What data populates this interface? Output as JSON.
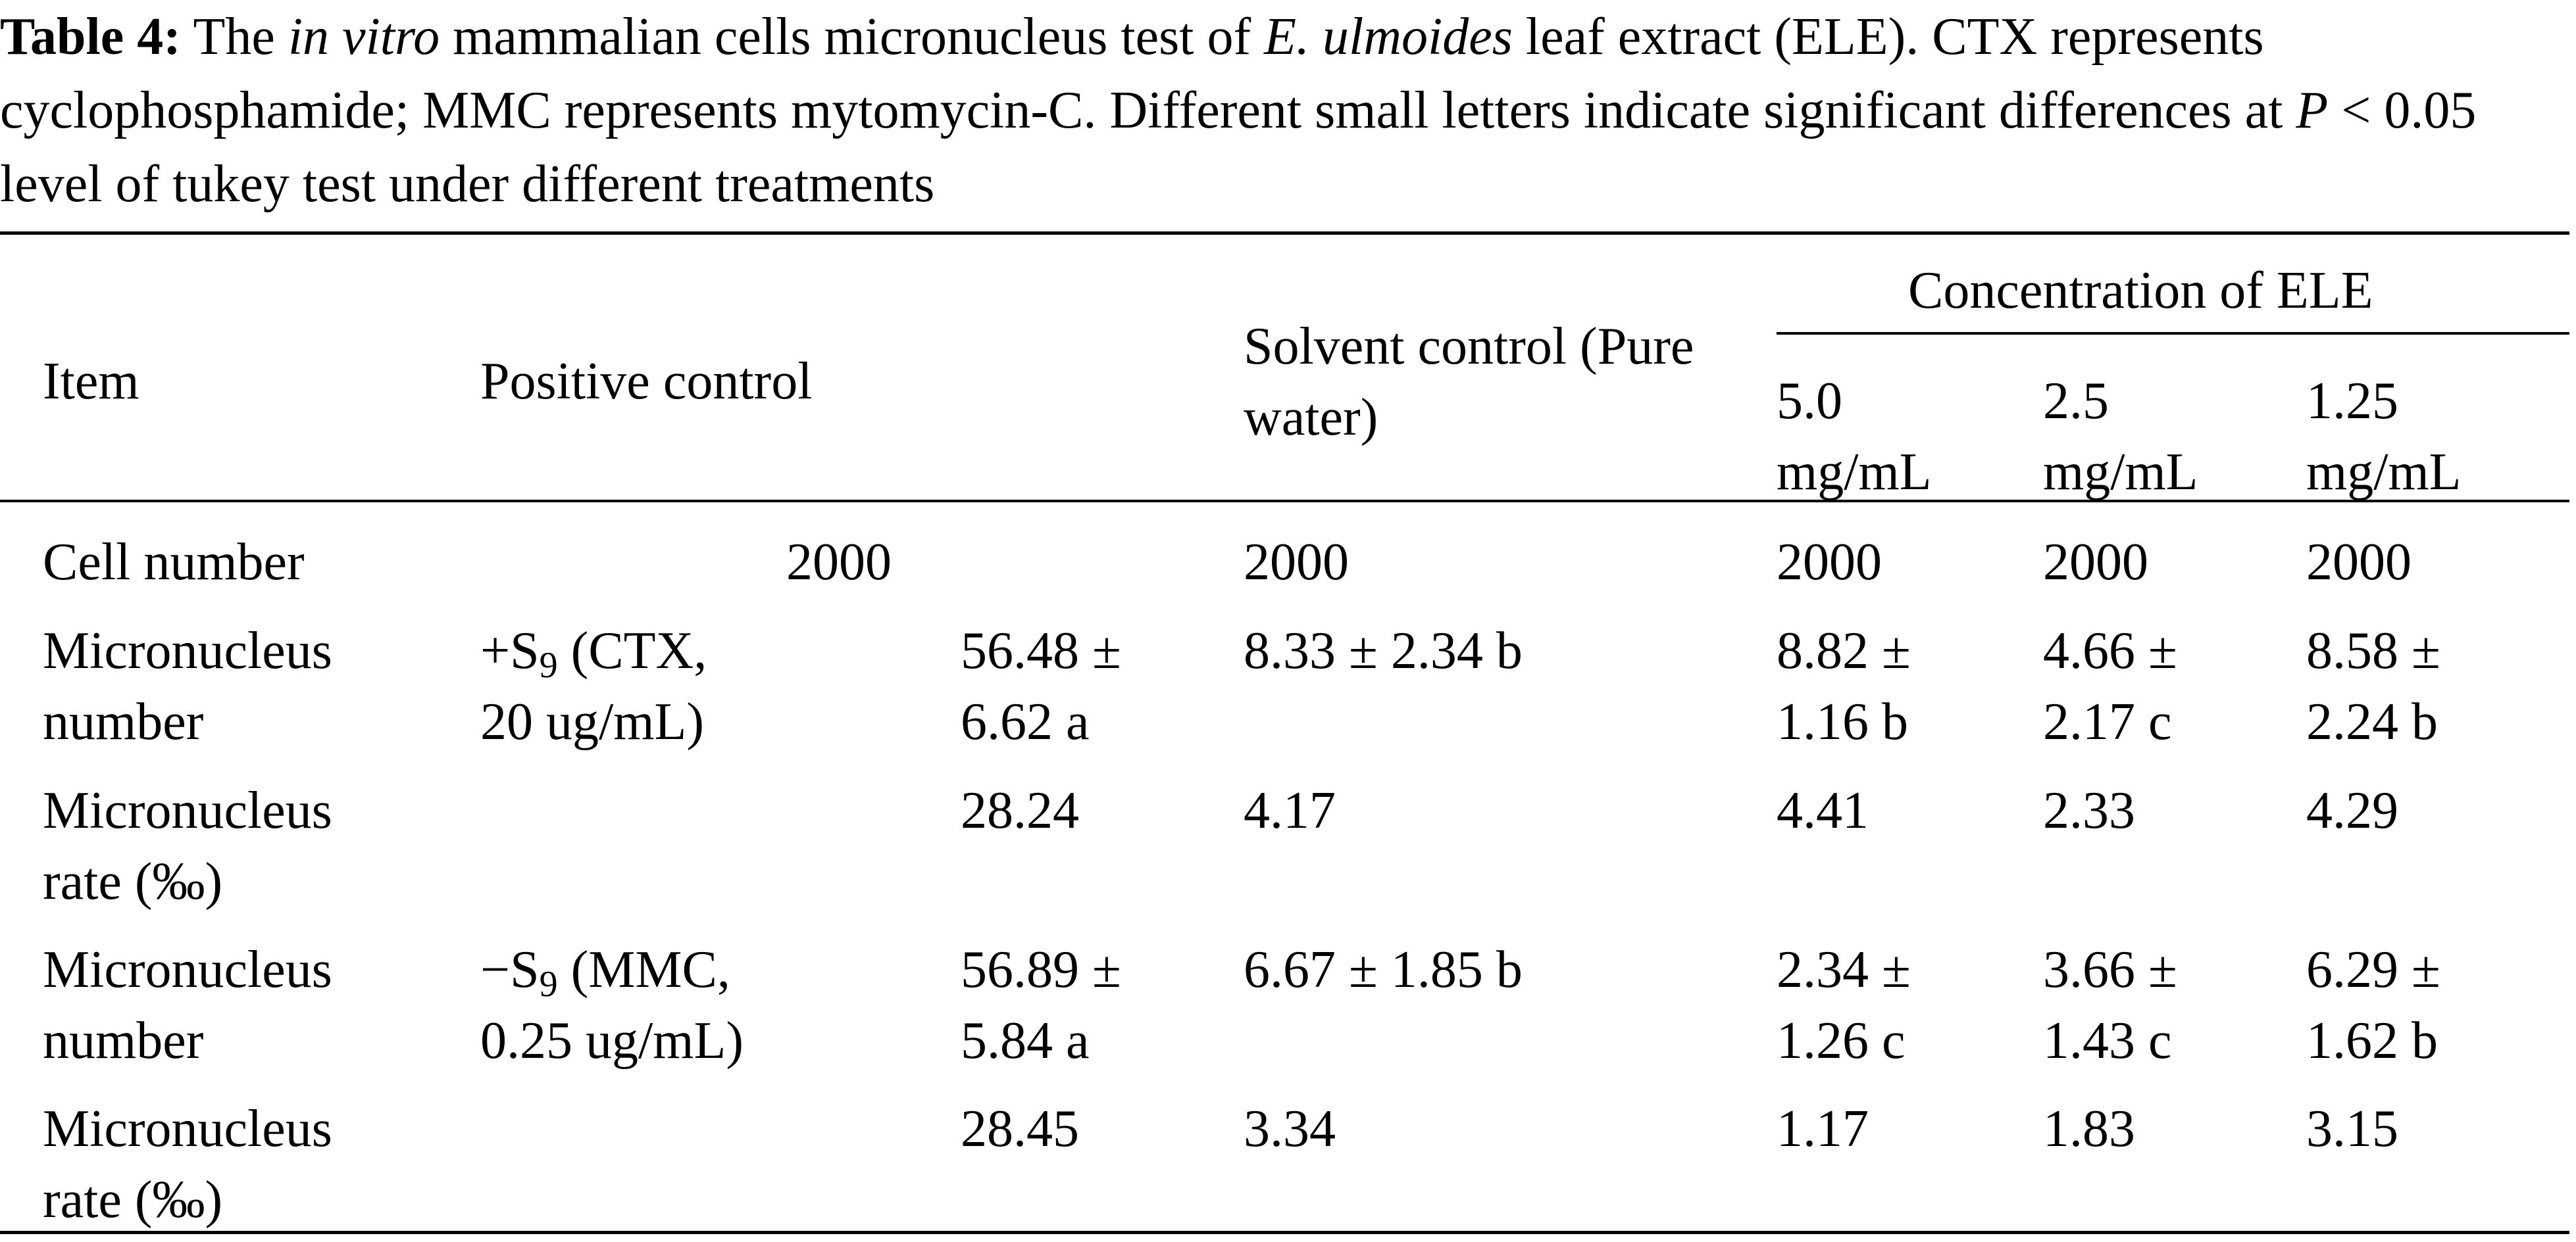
{
  "caption": {
    "label": "Table 4:",
    "part1": " The ",
    "italic1": "in vitro",
    "part2": " mammalian cells micronucleus test of ",
    "italic2": "E. ulmoides",
    "part3": " leaf extract (ELE). CTX represents cyclophosphamide; MMC represents mytomycin-C. Different small letters indicate significant differences at ",
    "italic3": "P",
    "part4": " < 0.05 level of tukey test under different treatments"
  },
  "table": {
    "headers": {
      "item": "Item",
      "positive_control": "Positive control",
      "solvent_control_line1": "Solvent control (Pure",
      "solvent_control_line2": "water)",
      "concentration_group": "Concentration of ELE",
      "conc_1_line1": "5.0",
      "conc_1_line2": "mg/mL",
      "conc_2_line1": "2.5",
      "conc_2_line2": "mg/mL",
      "conc_3_line1": "1.25",
      "conc_3_line2": "mg/mL"
    },
    "rows": {
      "cell_number": {
        "item": "Cell number",
        "positive": "2000",
        "solvent": "2000",
        "c1": "2000",
        "c2": "2000",
        "c3": "2000"
      },
      "mn_number_s9plus": {
        "item_line1": "Micronucleus",
        "item_line2": "number",
        "treatment_prefix": "+S",
        "treatment_sub": "9",
        "treatment_line1_rest": " (CTX,",
        "treatment_line2": "20 ug/mL)",
        "positive_line1": "56.48 ±",
        "positive_line2": "6.62 a",
        "solvent": "8.33 ± 2.34 b",
        "c1_line1": "8.82 ±",
        "c1_line2": "1.16 b",
        "c2_line1": "4.66 ±",
        "c2_line2": "2.17 c",
        "c3_line1": "8.58 ±",
        "c3_line2": "2.24 b"
      },
      "mn_rate_s9plus": {
        "item_line1": "Micronucleus",
        "item_line2": "rate (‰)",
        "positive": "28.24",
        "solvent": "4.17",
        "c1": "4.41",
        "c2": "2.33",
        "c3": "4.29"
      },
      "mn_number_s9minus": {
        "item_line1": "Micronucleus",
        "item_line2": "number",
        "treatment_prefix": "−S",
        "treatment_sub": "9",
        "treatment_line1_rest": " (MMC,",
        "treatment_line2": "0.25 ug/mL)",
        "positive_line1": "56.89 ±",
        "positive_line2": "5.84 a",
        "solvent": "6.67 ± 1.85 b",
        "c1_line1": "2.34 ±",
        "c1_line2": "1.26 c",
        "c2_line1": "3.66 ±",
        "c2_line2": "1.43 c",
        "c3_line1": "6.29 ±",
        "c3_line2": "1.62 b"
      },
      "mn_rate_s9minus": {
        "item_line1": "Micronucleus",
        "item_line2": "rate (‰)",
        "positive": "28.45",
        "solvent": "3.34",
        "c1": "1.17",
        "c2": "1.83",
        "c3": "3.15"
      }
    }
  }
}
